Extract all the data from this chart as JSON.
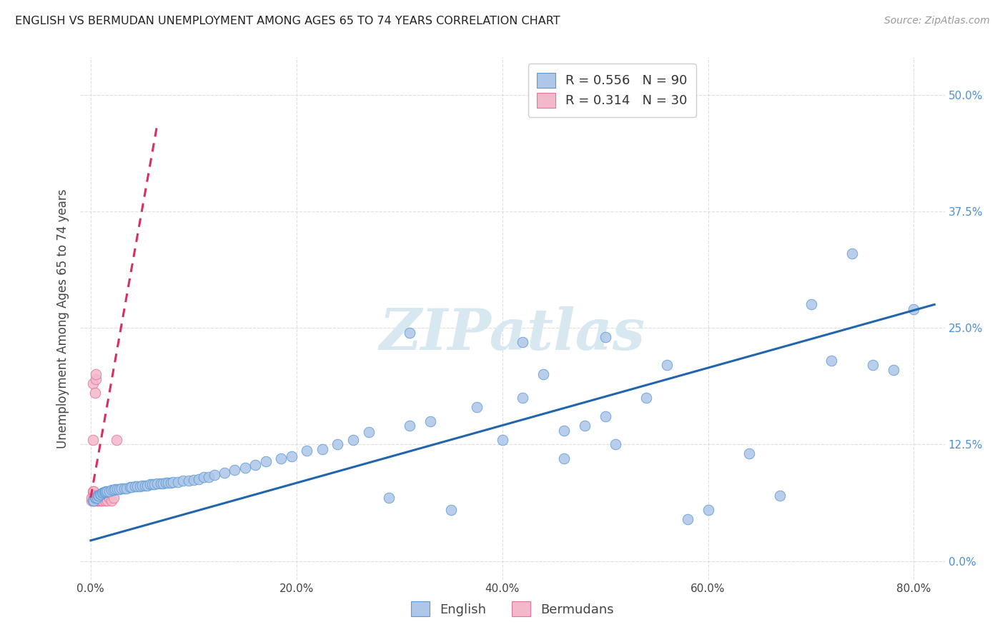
{
  "title": "ENGLISH VS BERMUDAN UNEMPLOYMENT AMONG AGES 65 TO 74 YEARS CORRELATION CHART",
  "source": "Source: ZipAtlas.com",
  "ylabel": "Unemployment Among Ages 65 to 74 years",
  "xlabel_ticks": [
    "0.0%",
    "20.0%",
    "40.0%",
    "60.0%",
    "80.0%"
  ],
  "xlabel_vals": [
    0.0,
    0.2,
    0.4,
    0.6,
    0.8
  ],
  "ylabel_ticks_right": [
    "50.0%",
    "37.5%",
    "25.0%",
    "12.5%",
    "0.0%"
  ],
  "ylabel_vals": [
    0.0,
    0.125,
    0.25,
    0.375,
    0.5
  ],
  "xlim": [
    -0.01,
    0.83
  ],
  "ylim": [
    -0.02,
    0.54
  ],
  "english_R": 0.556,
  "english_N": 90,
  "bermudan_R": 0.314,
  "bermudan_N": 30,
  "english_color": "#aec6e8",
  "english_edge_color": "#5b9bd5",
  "english_line_color": "#2166ac",
  "bermudan_color": "#f4b8cb",
  "bermudan_edge_color": "#e8729a",
  "bermudan_line_color": "#d63060",
  "background_color": "#ffffff",
  "grid_color": "#d0d0d0",
  "title_color": "#222222",
  "axis_label_color": "#444444",
  "right_tick_color": "#4a90d9",
  "watermark_text": "ZIPatlas",
  "watermark_color": "#d8e8f0",
  "legend_edge_color": "#cccccc",
  "english_x": [
    0.002,
    0.003,
    0.004,
    0.005,
    0.006,
    0.007,
    0.008,
    0.009,
    0.01,
    0.011,
    0.012,
    0.013,
    0.014,
    0.015,
    0.016,
    0.018,
    0.02,
    0.022,
    0.024,
    0.026,
    0.028,
    0.03,
    0.033,
    0.035,
    0.038,
    0.04,
    0.043,
    0.045,
    0.048,
    0.05,
    0.053,
    0.055,
    0.058,
    0.06,
    0.062,
    0.065,
    0.068,
    0.07,
    0.073,
    0.075,
    0.078,
    0.08,
    0.085,
    0.09,
    0.095,
    0.1,
    0.105,
    0.11,
    0.115,
    0.12,
    0.13,
    0.14,
    0.15,
    0.16,
    0.17,
    0.185,
    0.195,
    0.21,
    0.225,
    0.24,
    0.255,
    0.27,
    0.29,
    0.31,
    0.33,
    0.35,
    0.375,
    0.4,
    0.42,
    0.44,
    0.46,
    0.48,
    0.5,
    0.51,
    0.54,
    0.56,
    0.58,
    0.6,
    0.64,
    0.67,
    0.7,
    0.72,
    0.74,
    0.76,
    0.78,
    0.8,
    0.31,
    0.42,
    0.46,
    0.5
  ],
  "english_y": [
    0.065,
    0.065,
    0.068,
    0.068,
    0.068,
    0.07,
    0.07,
    0.072,
    0.072,
    0.073,
    0.073,
    0.074,
    0.074,
    0.075,
    0.075,
    0.075,
    0.076,
    0.076,
    0.077,
    0.077,
    0.077,
    0.078,
    0.078,
    0.078,
    0.079,
    0.079,
    0.08,
    0.08,
    0.08,
    0.081,
    0.081,
    0.081,
    0.082,
    0.082,
    0.082,
    0.083,
    0.083,
    0.083,
    0.084,
    0.084,
    0.084,
    0.085,
    0.085,
    0.086,
    0.086,
    0.087,
    0.088,
    0.09,
    0.09,
    0.092,
    0.095,
    0.098,
    0.1,
    0.103,
    0.107,
    0.11,
    0.112,
    0.118,
    0.12,
    0.125,
    0.13,
    0.138,
    0.068,
    0.145,
    0.15,
    0.055,
    0.165,
    0.13,
    0.175,
    0.2,
    0.14,
    0.145,
    0.155,
    0.125,
    0.175,
    0.21,
    0.045,
    0.055,
    0.115,
    0.07,
    0.275,
    0.215,
    0.33,
    0.21,
    0.205,
    0.27,
    0.245,
    0.235,
    0.11,
    0.24
  ],
  "bermudan_x": [
    0.001,
    0.001,
    0.002,
    0.002,
    0.002,
    0.003,
    0.003,
    0.003,
    0.004,
    0.004,
    0.004,
    0.005,
    0.005,
    0.006,
    0.006,
    0.007,
    0.007,
    0.008,
    0.009,
    0.01,
    0.011,
    0.012,
    0.013,
    0.014,
    0.015,
    0.016,
    0.018,
    0.02,
    0.022,
    0.025
  ],
  "bermudan_y": [
    0.065,
    0.068,
    0.075,
    0.13,
    0.19,
    0.065,
    0.07,
    0.075,
    0.065,
    0.07,
    0.18,
    0.195,
    0.2,
    0.065,
    0.07,
    0.065,
    0.07,
    0.065,
    0.068,
    0.065,
    0.065,
    0.07,
    0.068,
    0.065,
    0.07,
    0.065,
    0.068,
    0.065,
    0.068,
    0.13
  ],
  "english_line_x": [
    0.0,
    0.82
  ],
  "english_line_y": [
    0.022,
    0.275
  ],
  "bermudan_line_x": [
    0.0,
    0.065
  ],
  "bermudan_line_y": [
    0.068,
    0.47
  ]
}
